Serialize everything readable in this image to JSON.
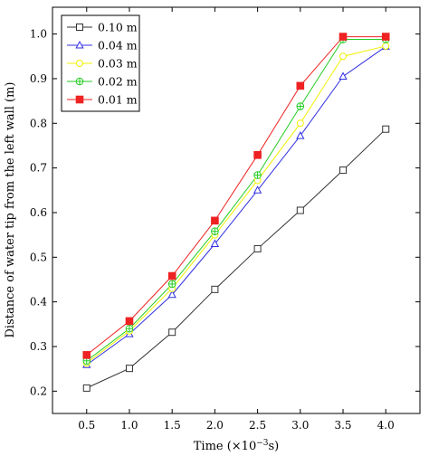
{
  "chart_data": {
    "type": "line",
    "xlabel": "Time (×10",
    "xlabel_sup": "−3",
    "xlabel_tail": "s)",
    "ylabel": "Distance of water tip from the left wall (m)",
    "x": [
      0.5,
      1.0,
      1.5,
      2.0,
      2.5,
      3.0,
      3.5,
      4.0
    ],
    "xlim": [
      0.1,
      4.4
    ],
    "ylim": [
      0.15,
      1.06
    ],
    "xticks": [
      0.5,
      1.0,
      1.5,
      2.0,
      2.5,
      3.0,
      3.5,
      4.0
    ],
    "xtick_labels": [
      "0.5",
      "1.0",
      "1.5",
      "2.0",
      "2.5",
      "3.0",
      "3.5",
      "4.0"
    ],
    "yticks": [
      0.2,
      0.3,
      0.4,
      0.5,
      0.6,
      0.7,
      0.8,
      0.9,
      1.0
    ],
    "ytick_labels": [
      "0.2",
      "0.3",
      "0.4",
      "0.5",
      "0.6",
      "0.7",
      "0.8",
      "0.9",
      "1.0"
    ],
    "grid": false,
    "legend_position": "top-left",
    "series": [
      {
        "name": "0.10 m",
        "color": "#333333",
        "marker": "square-open",
        "values": [
          0.207,
          0.251,
          0.332,
          0.428,
          0.519,
          0.605,
          0.695,
          0.787
        ]
      },
      {
        "name": "0.04 m",
        "color": "#3030e0",
        "marker": "triangle-open",
        "values": [
          0.259,
          0.328,
          0.416,
          0.53,
          0.65,
          0.772,
          0.905,
          0.972
        ]
      },
      {
        "name": "0.03 m",
        "color": "#f0f000",
        "marker": "circle-open",
        "values": [
          0.263,
          0.335,
          0.43,
          0.55,
          0.672,
          0.8,
          0.95,
          0.973
        ]
      },
      {
        "name": "0.02 m",
        "color": "#22cc22",
        "marker": "circle-plus",
        "values": [
          0.268,
          0.34,
          0.44,
          0.558,
          0.684,
          0.838,
          0.988,
          0.988
        ]
      },
      {
        "name": "0.01 m",
        "color": "#ee2222",
        "marker": "square-filled",
        "values": [
          0.281,
          0.357,
          0.458,
          0.582,
          0.729,
          0.884,
          0.994,
          0.994
        ]
      }
    ]
  }
}
